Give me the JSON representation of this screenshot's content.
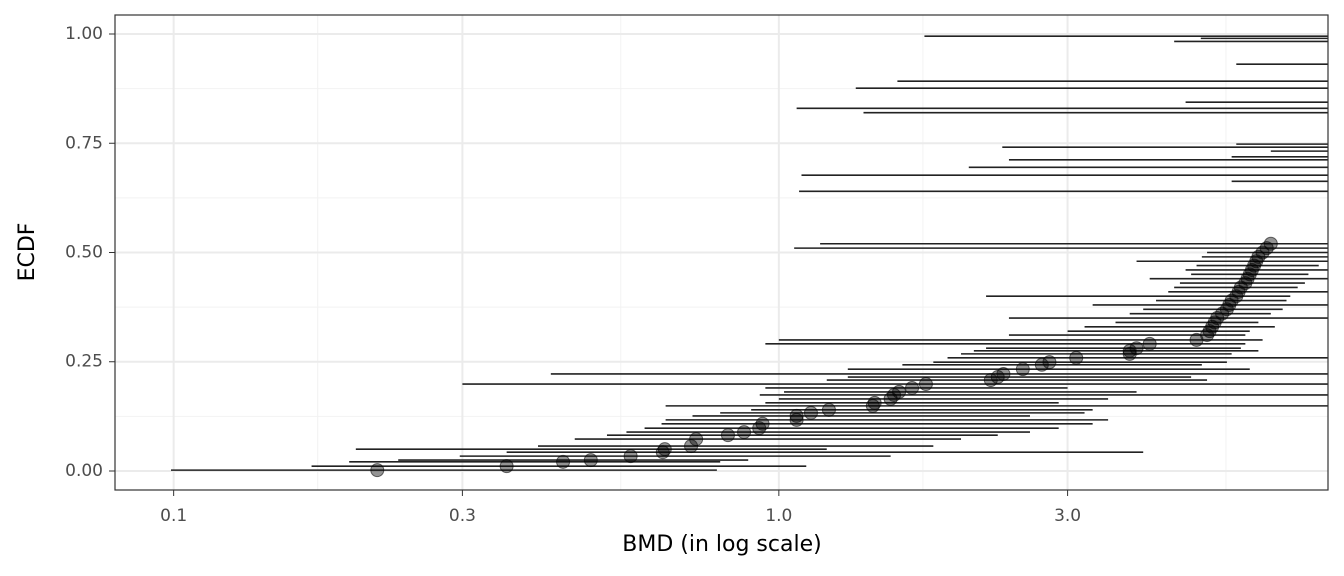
{
  "chart_data": {
    "type": "ecdf-interval",
    "xlabel": "BMD (in log scale)",
    "ylabel": "ECDF",
    "xscale": "log",
    "grid": true,
    "xlim": [
      0.08,
      8.08
    ],
    "ylim": [
      -0.0435,
      1.0435
    ],
    "xticks": [
      0.1,
      0.3,
      {
        "value": 1,
        "label": "1.0"
      },
      {
        "value": 3,
        "label": "3.0"
      }
    ],
    "yticks": [
      {
        "value": 0,
        "label": "0.00"
      },
      {
        "value": 0.25,
        "label": "0.25"
      },
      {
        "value": 0.5,
        "label": "0.50"
      },
      {
        "value": 0.75,
        "label": "0.75"
      },
      {
        "value": 1,
        "label": "1.00"
      }
    ],
    "xminor": [
      0.173,
      0.548,
      1.73,
      5.48
    ],
    "yminor": [
      0.125,
      0.375,
      0.625,
      0.875
    ],
    "series": [
      {
        "color": "#000000",
        "line_color": "#222222",
        "ecdf": [
          0.002,
          0.011,
          0.021,
          0.025,
          0.034,
          0.043,
          0.05,
          0.057,
          0.073,
          0.082,
          0.089,
          0.098,
          0.108,
          0.117,
          0.126,
          0.133,
          0.14,
          0.149,
          0.156,
          0.165,
          0.174,
          0.181,
          0.19,
          0.199,
          0.208,
          0.215,
          0.222,
          0.233,
          0.243,
          0.249,
          0.259,
          0.268,
          0.275,
          0.281,
          0.291,
          0.3,
          0.311,
          0.32,
          0.33,
          0.34,
          0.35,
          0.36,
          0.37,
          0.38,
          0.39,
          0.4,
          0.41,
          0.42,
          0.43,
          0.44,
          0.45,
          0.46,
          0.47,
          0.48,
          0.49,
          0.5,
          0.51,
          0.52,
          0.64,
          0.663,
          0.677,
          0.695,
          0.712,
          0.719,
          0.732,
          0.741,
          0.748,
          0.82,
          0.83,
          0.844,
          0.876,
          0.892,
          0.931,
          0.983,
          0.99,
          0.995
        ],
        "bmd": [
          0.217,
          0.355,
          0.44,
          0.489,
          0.569,
          0.643,
          0.648,
          0.716,
          0.73,
          0.824,
          0.876,
          0.928,
          0.94,
          1.07,
          1.07,
          1.13,
          1.21,
          1.43,
          1.44,
          1.53,
          1.55,
          1.58,
          1.66,
          1.75,
          2.24,
          2.3,
          2.35,
          2.53,
          2.72,
          2.8,
          3.1,
          3.8,
          3.8,
          3.9,
          4.1,
          4.9,
          5.1,
          5.15,
          5.2,
          5.25,
          5.3,
          5.4,
          5.5,
          5.55,
          5.6,
          5.7,
          5.75,
          5.8,
          5.9,
          5.95,
          6.0,
          6.05,
          6.1,
          6.15,
          6.2,
          6.3,
          6.4,
          6.5,
          null,
          null,
          null,
          null,
          null,
          null,
          null,
          null,
          null,
          null,
          null,
          null,
          null,
          null,
          null,
          null,
          null,
          null
        ],
        "bmdl": [
          0.099,
          0.169,
          0.195,
          0.235,
          0.297,
          0.355,
          0.2,
          0.4,
          0.46,
          0.52,
          0.56,
          0.6,
          0.64,
          0.65,
          0.72,
          0.8,
          0.9,
          0.65,
          0.95,
          1.0,
          0.93,
          1.02,
          0.95,
          0.3,
          1.2,
          1.3,
          0.42,
          1.3,
          1.6,
          1.8,
          1.9,
          2.0,
          2.1,
          2.2,
          0.95,
          1.0,
          2.4,
          3.0,
          3.2,
          3.6,
          2.4,
          3.8,
          4.0,
          3.3,
          4.2,
          2.2,
          4.4,
          4.5,
          4.6,
          4.1,
          4.8,
          4.7,
          4.9,
          3.9,
          5.0,
          5.1,
          1.06,
          1.17,
          1.08,
          5.6,
          1.09,
          2.06,
          2.4,
          5.6,
          6.5,
          2.34,
          5.7,
          1.38,
          1.07,
          4.7,
          1.34,
          1.57,
          5.7,
          4.5,
          4.98,
          1.74
        ],
        "bmdu": [
          0.79,
          1.11,
          0.8,
          0.89,
          1.53,
          4.0,
          1.2,
          1.8,
          2.0,
          2.3,
          2.6,
          2.9,
          3.3,
          3.5,
          2.6,
          3.2,
          3.3,
          10,
          2.9,
          3.5,
          10,
          3.9,
          3.0,
          10,
          5.1,
          4.8,
          10,
          6.0,
          5.0,
          5.5,
          10,
          5.6,
          6.2,
          5.8,
          5.9,
          6.3,
          5.9,
          6.0,
          6.6,
          6.2,
          10,
          6.5,
          6.8,
          10,
          6.9,
          7.0,
          10,
          7.2,
          7.4,
          10,
          7.5,
          10,
          7.8,
          10,
          10,
          8.5,
          10,
          10,
          10,
          10,
          10,
          10,
          10,
          10,
          10,
          10,
          10,
          10,
          10,
          10,
          10,
          10,
          10,
          10,
          10,
          10
        ]
      }
    ]
  }
}
